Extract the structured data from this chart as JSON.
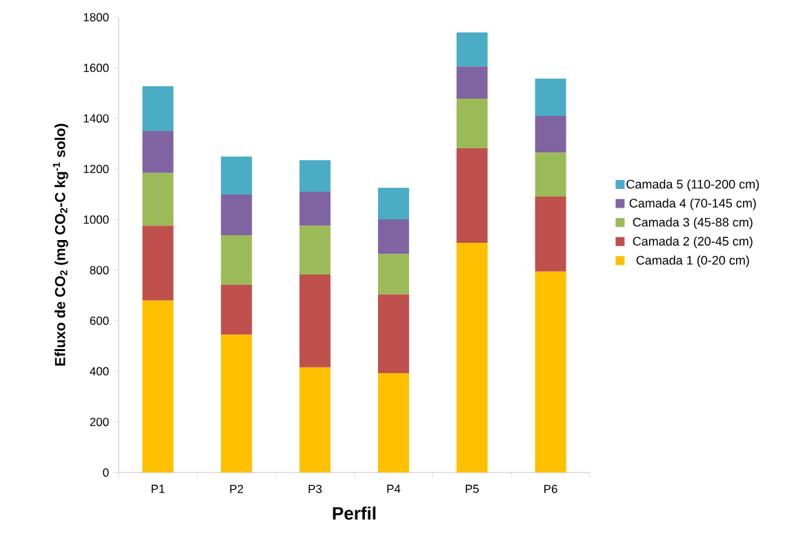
{
  "chart_data": {
    "type": "bar",
    "stacked": true,
    "xlabel": "Perfil",
    "ylabel": "Efluxo de CO$_{2}$ (mg CO$_{2}$-C kg$^{-1}$ solo)",
    "categories": [
      "P1",
      "P2",
      "P3",
      "P4",
      "P5",
      "P6"
    ],
    "series": [
      {
        "name": "Camada 1 (0-20 cm)",
        "color": "#ffc000",
        "values": [
          680,
          545,
          415,
          393,
          908,
          794
        ]
      },
      {
        "name": "Camada 2 (20-45 cm)",
        "color": "#c0504d",
        "values": [
          296,
          197,
          368,
          311,
          374,
          297
        ]
      },
      {
        "name": "Camada 3 (45-88 cm)",
        "color": "#9bbb59",
        "values": [
          208,
          196,
          193,
          160,
          196,
          174
        ]
      },
      {
        "name": "Camada 4 (70-145 cm)",
        "color": "#8064a2",
        "values": [
          166,
          161,
          134,
          137,
          128,
          145
        ]
      },
      {
        "name": "Camada 5 (110-200 cm)",
        "color": "#4bacc6",
        "values": [
          177,
          150,
          125,
          125,
          134,
          147
        ]
      }
    ],
    "ylim": [
      0,
      1800
    ],
    "yticks": [
      0,
      200,
      400,
      600,
      800,
      1000,
      1200,
      1400,
      1600,
      1800
    ],
    "grid": false,
    "legend": "right"
  }
}
